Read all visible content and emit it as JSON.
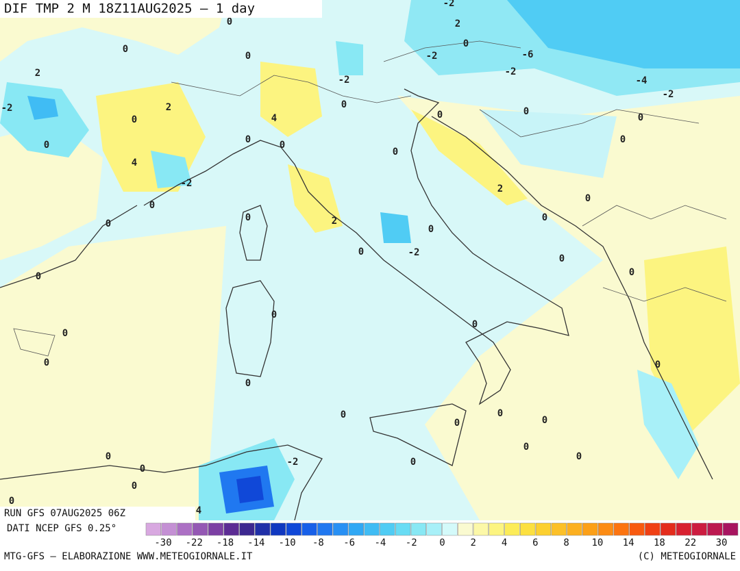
{
  "title": "DIF TMP 2 M 18Z11AUG2025 – 1 day",
  "run": "RUN GFS 07AUG2025 06Z",
  "source": "DATI NCEP GFS 0.25°",
  "footer_left": "MTG-GFS – ELABORAZIONE WWW.METEOGIORNALE.IT",
  "footer_right": "(C) METEOGIORNALE",
  "map_labels": [
    "0",
    "0",
    "0",
    "2",
    "-2",
    "2",
    "0",
    "0",
    "4",
    "-2",
    "0",
    "0",
    "0",
    "4",
    "0",
    "0",
    "-2",
    "0",
    "0",
    "0",
    "-2",
    "2",
    "0",
    "-2",
    "-2",
    "-6",
    "-4",
    "-2",
    "0",
    "0",
    "0",
    "2",
    "0",
    "0",
    "2",
    "0",
    "-2",
    "0",
    "0",
    "0",
    "0",
    "0",
    "0",
    "0",
    "0",
    "0",
    "0",
    "0",
    "0",
    "0",
    "0",
    "0",
    "0",
    "0",
    "0",
    "0",
    "0",
    "-2",
    "0",
    "4"
  ],
  "legend": {
    "ticks": [
      -30,
      -22,
      -18,
      -14,
      -10,
      -8,
      -6,
      -4,
      -2,
      0,
      2,
      4,
      6,
      8,
      10,
      14,
      18,
      22,
      30
    ],
    "colors": [
      "#d8a8e0",
      "#c490d4",
      "#ac70c4",
      "#9458b4",
      "#7c40a4",
      "#5c2c94",
      "#3c2890",
      "#2030a8",
      "#1038c0",
      "#1048d8",
      "#1860e8",
      "#2078f0",
      "#2890f4",
      "#30a8f4",
      "#40bcf4",
      "#50ccf4",
      "#68dcf4",
      "#88e8f4",
      "#a8f0f8",
      "#d4fafa",
      "#fafad0",
      "#fcf8a8",
      "#fcf480",
      "#fcec58",
      "#fce040",
      "#fcd030",
      "#fcc028",
      "#fcb020",
      "#fca018",
      "#fc8c14",
      "#fc7410",
      "#f85a10",
      "#f04014",
      "#e42c1c",
      "#d82030",
      "#cc1c40",
      "#bc1850",
      "#a81460"
    ]
  }
}
